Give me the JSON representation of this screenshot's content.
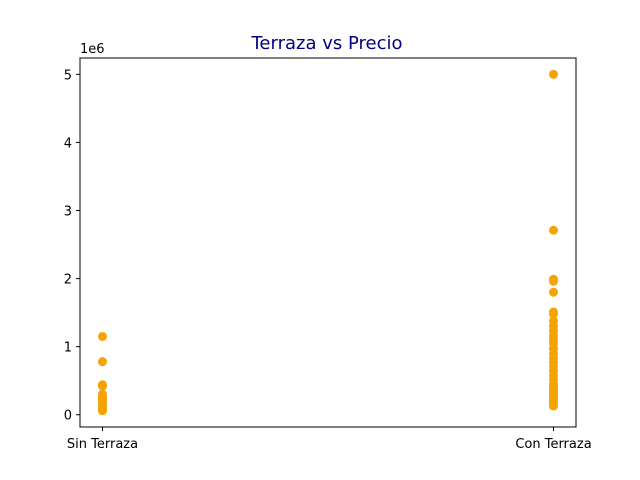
{
  "chart_data": {
    "type": "scatter",
    "title": "Terraza  vs Precio",
    "title_color": "#000080",
    "point_color": "#f5a300",
    "categories": [
      "Sin Terraza",
      "Con Terraza"
    ],
    "y_offset_label": "1e6",
    "ylim": [
      -0.18,
      5.24
    ],
    "yticks": [
      0,
      1,
      2,
      3,
      4,
      5
    ],
    "grid": false,
    "series": [
      {
        "points": [
          {
            "x": "Sin Terraza",
            "y": 1.15
          },
          {
            "x": "Sin Terraza",
            "y": 0.78
          },
          {
            "x": "Sin Terraza",
            "y": 0.44
          },
          {
            "x": "Sin Terraza",
            "y": 0.42
          },
          {
            "x": "Sin Terraza",
            "y": 0.3
          },
          {
            "x": "Sin Terraza",
            "y": 0.27
          },
          {
            "x": "Sin Terraza",
            "y": 0.23
          },
          {
            "x": "Sin Terraza",
            "y": 0.2
          },
          {
            "x": "Sin Terraza",
            "y": 0.16
          },
          {
            "x": "Sin Terraza",
            "y": 0.13
          },
          {
            "x": "Sin Terraza",
            "y": 0.09
          },
          {
            "x": "Sin Terraza",
            "y": 0.06
          },
          {
            "x": "Con Terraza",
            "y": 5.0
          },
          {
            "x": "Con Terraza",
            "y": 2.71
          },
          {
            "x": "Con Terraza",
            "y": 1.99
          },
          {
            "x": "Con Terraza",
            "y": 1.96
          },
          {
            "x": "Con Terraza",
            "y": 1.8
          },
          {
            "x": "Con Terraza",
            "y": 1.51
          },
          {
            "x": "Con Terraza",
            "y": 1.48
          },
          {
            "x": "Con Terraza",
            "y": 1.38
          },
          {
            "x": "Con Terraza",
            "y": 1.3
          },
          {
            "x": "Con Terraza",
            "y": 1.23
          },
          {
            "x": "Con Terraza",
            "y": 1.16
          },
          {
            "x": "Con Terraza",
            "y": 1.1
          },
          {
            "x": "Con Terraza",
            "y": 1.05
          },
          {
            "x": "Con Terraza",
            "y": 0.97
          },
          {
            "x": "Con Terraza",
            "y": 0.9
          },
          {
            "x": "Con Terraza",
            "y": 0.83
          },
          {
            "x": "Con Terraza",
            "y": 0.77
          },
          {
            "x": "Con Terraza",
            "y": 0.71
          },
          {
            "x": "Con Terraza",
            "y": 0.65
          },
          {
            "x": "Con Terraza",
            "y": 0.58
          },
          {
            "x": "Con Terraza",
            "y": 0.52
          },
          {
            "x": "Con Terraza",
            "y": 0.45
          },
          {
            "x": "Con Terraza",
            "y": 0.41
          },
          {
            "x": "Con Terraza",
            "y": 0.37
          },
          {
            "x": "Con Terraza",
            "y": 0.33
          },
          {
            "x": "Con Terraza",
            "y": 0.29
          },
          {
            "x": "Con Terraza",
            "y": 0.25
          },
          {
            "x": "Con Terraza",
            "y": 0.21
          },
          {
            "x": "Con Terraza",
            "y": 0.17
          },
          {
            "x": "Con Terraza",
            "y": 0.13
          }
        ]
      }
    ]
  }
}
